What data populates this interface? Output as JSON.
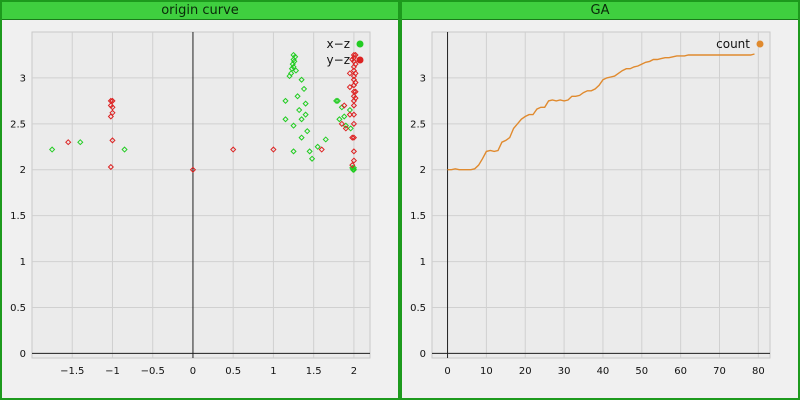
{
  "chart_data": [
    {
      "type": "scatter",
      "title": "origin curve",
      "xlim": [
        -2.0,
        2.2
      ],
      "ylim": [
        -0.05,
        3.5
      ],
      "x_ticks": [
        -1.5,
        -1,
        -0.5,
        0,
        0.5,
        1,
        1.5,
        2
      ],
      "x_tick_labels": [
        "−1.5",
        "−1",
        "−0.5",
        "0",
        "0.5",
        "1",
        "1.5",
        "2"
      ],
      "y_ticks": [
        0,
        0.5,
        1,
        1.5,
        2,
        2.5,
        3
      ],
      "y_tick_labels": [
        "0",
        "0.5",
        "1",
        "1.5",
        "2",
        "2.5",
        "3"
      ],
      "grid": true,
      "legend_position": "top-right",
      "series": [
        {
          "name": "x−z",
          "color": "#22cc22",
          "points": [
            [
              -1.75,
              2.22
            ],
            [
              -1.4,
              2.3
            ],
            [
              -0.85,
              2.22
            ],
            [
              1.15,
              2.55
            ],
            [
              1.15,
              2.75
            ],
            [
              1.2,
              3.02
            ],
            [
              1.22,
              3.05
            ],
            [
              1.23,
              3.1
            ],
            [
              1.24,
              3.15
            ],
            [
              1.25,
              3.2
            ],
            [
              1.25,
              3.25
            ],
            [
              1.27,
              3.23
            ],
            [
              1.26,
              3.18
            ],
            [
              1.25,
              3.12
            ],
            [
              1.28,
              3.08
            ],
            [
              1.25,
              2.2
            ],
            [
              1.25,
              2.48
            ],
            [
              1.3,
              2.8
            ],
            [
              1.32,
              2.65
            ],
            [
              1.35,
              2.98
            ],
            [
              1.35,
              2.55
            ],
            [
              1.35,
              2.35
            ],
            [
              1.38,
              2.88
            ],
            [
              1.4,
              2.72
            ],
            [
              1.4,
              2.6
            ],
            [
              1.42,
              2.42
            ],
            [
              1.45,
              2.2
            ],
            [
              1.48,
              2.12
            ],
            [
              1.55,
              2.25
            ],
            [
              1.65,
              2.33
            ],
            [
              1.78,
              2.75
            ],
            [
              1.8,
              2.75
            ],
            [
              1.82,
              2.55
            ],
            [
              1.85,
              2.68
            ],
            [
              1.88,
              2.58
            ],
            [
              1.9,
              2.48
            ],
            [
              1.95,
              2.65
            ],
            [
              1.96,
              2.45
            ],
            [
              1.98,
              2.02
            ],
            [
              1.99,
              2.0
            ],
            [
              2.0,
              2.0
            ],
            [
              2.0,
              2.02
            ]
          ]
        },
        {
          "name": "y−z",
          "color": "#dd2222",
          "points": [
            [
              -1.55,
              2.3
            ],
            [
              -1.02,
              2.75
            ],
            [
              -1.02,
              2.7
            ],
            [
              -1.0,
              2.75
            ],
            [
              -1.0,
              2.68
            ],
            [
              -1.0,
              2.62
            ],
            [
              -1.02,
              2.58
            ],
            [
              -1.0,
              2.32
            ],
            [
              -1.02,
              2.03
            ],
            [
              0.0,
              2.0
            ],
            [
              0.5,
              2.22
            ],
            [
              1.0,
              2.22
            ],
            [
              1.6,
              2.22
            ],
            [
              1.85,
              2.5
            ],
            [
              1.88,
              2.7
            ],
            [
              1.9,
              2.45
            ],
            [
              1.95,
              2.6
            ],
            [
              1.95,
              2.9
            ],
            [
              1.95,
              3.05
            ],
            [
              1.98,
              3.2
            ],
            [
              1.98,
              2.35
            ],
            [
              1.98,
              2.05
            ],
            [
              2.0,
              3.25
            ],
            [
              2.0,
              3.22
            ],
            [
              2.0,
              3.18
            ],
            [
              2.0,
              3.12
            ],
            [
              2.0,
              3.08
            ],
            [
              2.0,
              3.02
            ],
            [
              2.0,
              2.98
            ],
            [
              2.0,
              2.92
            ],
            [
              2.0,
              2.85
            ],
            [
              2.0,
              2.8
            ],
            [
              2.0,
              2.75
            ],
            [
              2.0,
              2.7
            ],
            [
              2.0,
              2.6
            ],
            [
              2.0,
              2.5
            ],
            [
              2.0,
              2.35
            ],
            [
              2.0,
              2.2
            ],
            [
              2.0,
              2.1
            ],
            [
              2.02,
              3.25
            ],
            [
              2.02,
              3.15
            ],
            [
              2.02,
              3.05
            ],
            [
              2.02,
              2.95
            ],
            [
              2.02,
              2.85
            ],
            [
              2.02,
              2.78
            ]
          ]
        }
      ]
    },
    {
      "type": "line",
      "title": "GA",
      "xlim": [
        -4,
        83
      ],
      "ylim": [
        -0.05,
        3.5
      ],
      "x_ticks": [
        0,
        10,
        20,
        30,
        40,
        50,
        60,
        70,
        80
      ],
      "x_tick_labels": [
        "0",
        "10",
        "20",
        "30",
        "40",
        "50",
        "60",
        "70",
        "80"
      ],
      "y_ticks": [
        0,
        0.5,
        1,
        1.5,
        2,
        2.5,
        3
      ],
      "y_tick_labels": [
        "0",
        "0.5",
        "1",
        "1.5",
        "2",
        "2.5",
        "3"
      ],
      "grid": true,
      "legend_position": "top-right",
      "series": [
        {
          "name": "count",
          "color": "#e08a2e",
          "x": [
            0,
            1,
            2,
            3,
            4,
            5,
            6,
            7,
            8,
            9,
            10,
            11,
            12,
            13,
            14,
            15,
            16,
            17,
            18,
            19,
            20,
            21,
            22,
            23,
            24,
            25,
            26,
            27,
            28,
            29,
            30,
            31,
            32,
            33,
            34,
            35,
            36,
            37,
            38,
            39,
            40,
            41,
            42,
            43,
            44,
            45,
            46,
            47,
            48,
            49,
            50,
            51,
            52,
            53,
            54,
            55,
            56,
            57,
            58,
            59,
            60,
            61,
            62,
            63,
            64,
            65,
            66,
            67,
            68,
            69,
            70,
            71,
            72,
            73,
            74,
            75,
            76,
            77,
            78,
            79
          ],
          "y": [
            2.0,
            2.0,
            2.01,
            2.0,
            2.0,
            2.0,
            2.0,
            2.01,
            2.05,
            2.12,
            2.2,
            2.21,
            2.2,
            2.21,
            2.3,
            2.32,
            2.35,
            2.45,
            2.5,
            2.55,
            2.58,
            2.6,
            2.6,
            2.66,
            2.68,
            2.68,
            2.75,
            2.76,
            2.75,
            2.76,
            2.75,
            2.76,
            2.8,
            2.8,
            2.81,
            2.84,
            2.86,
            2.86,
            2.88,
            2.92,
            2.98,
            3.0,
            3.01,
            3.02,
            3.05,
            3.08,
            3.1,
            3.1,
            3.12,
            3.13,
            3.15,
            3.17,
            3.18,
            3.2,
            3.2,
            3.21,
            3.22,
            3.22,
            3.23,
            3.24,
            3.24,
            3.24,
            3.25,
            3.25,
            3.25,
            3.25,
            3.25,
            3.25,
            3.25,
            3.25,
            3.25,
            3.25,
            3.25,
            3.25,
            3.25,
            3.25,
            3.25,
            3.25,
            3.25,
            3.26
          ]
        }
      ]
    }
  ]
}
